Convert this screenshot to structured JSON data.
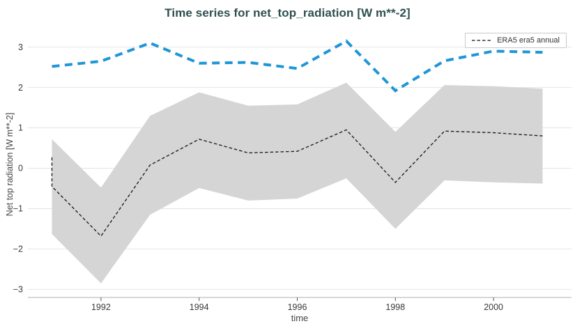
{
  "title": {
    "text": "Time series for net_top_radiation [W m**-2]",
    "color": "#2f4f4f"
  },
  "legend": {
    "position": "top-right",
    "entries": [
      {
        "label": "ERA5 era5 annual",
        "sample": "black-dashed-line"
      }
    ]
  },
  "axes": {
    "x": {
      "label": "time",
      "tick_labels": [
        "1992",
        "1994",
        "1996",
        "1998",
        "2000"
      ]
    },
    "y": {
      "label": "Net top radiation [W m**-2]",
      "tick_labels": [
        "3",
        "2",
        "1",
        "0",
        "−1",
        "−2",
        "−3"
      ]
    }
  },
  "chart_data": {
    "type": "line",
    "title": "Time series for net_top_radiation [W m**-2]",
    "xlabel": "time",
    "ylabel": "Net top radiation [W m**-2]",
    "x": [
      1991,
      1992,
      1993,
      1994,
      1995,
      1996,
      1997,
      1998,
      1999,
      2000,
      2001
    ],
    "xlim": [
      1990.51,
      2001.59
    ],
    "ylim": [
      -3.2,
      3.39
    ],
    "xticks": [
      1992,
      1994,
      1996,
      1998,
      2000
    ],
    "yticks": [
      3,
      2,
      1,
      0,
      -1,
      -2,
      -3
    ],
    "ytick_labels": [
      "3",
      "2",
      "1",
      "0",
      "−1",
      "−2",
      "−3"
    ],
    "grid": "horizontal-only",
    "grid_color": "#e4e4e4",
    "axis_line_color": "#cccccc",
    "tick_color": "#555555",
    "legend_position": "top-right",
    "series": [
      {
        "name": "ERA5 era5 annual",
        "in_legend": true,
        "color": "#222222",
        "line_style": "dashed-thin",
        "values": [
          -0.45,
          -1.68,
          0.08,
          0.72,
          0.38,
          0.42,
          0.95,
          -0.35,
          0.92,
          0.88,
          0.8
        ],
        "edge_spike_start_value": 0.27
      },
      {
        "name": "",
        "in_legend": false,
        "color": "#1e96d7",
        "line_style": "dashed-thick",
        "values": [
          2.52,
          2.65,
          3.1,
          2.6,
          2.62,
          2.47,
          3.15,
          1.92,
          2.66,
          2.9,
          2.87
        ]
      }
    ],
    "uncertainty_band": {
      "belongs_to": "ERA5 era5 annual",
      "color": "#d5d5d5",
      "upper": [
        0.72,
        -0.48,
        1.3,
        1.88,
        1.55,
        1.58,
        2.12,
        0.9,
        2.06,
        2.03,
        1.97
      ],
      "lower": [
        -1.63,
        -2.85,
        -1.15,
        -0.49,
        -0.8,
        -0.75,
        -0.25,
        -1.5,
        -0.3,
        -0.35,
        -0.38
      ]
    }
  }
}
